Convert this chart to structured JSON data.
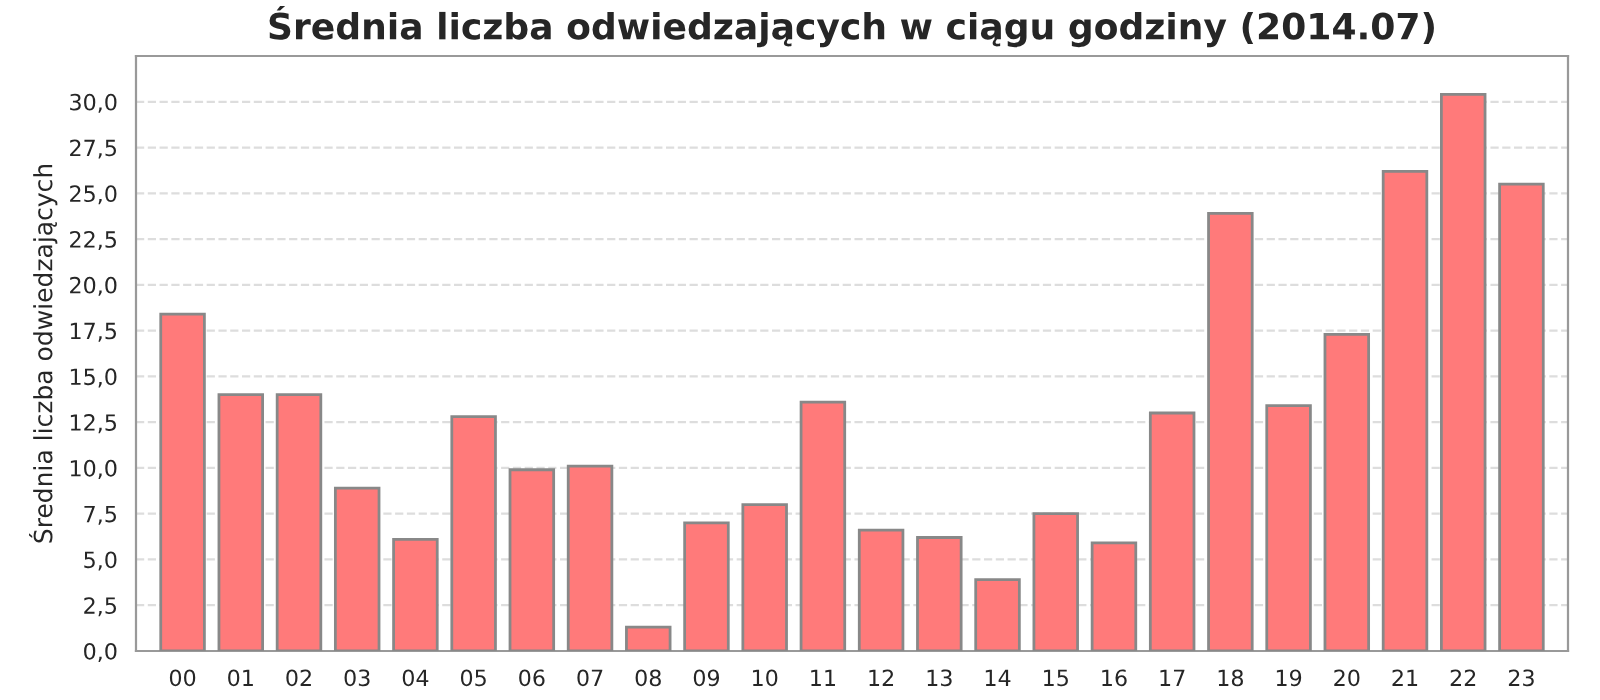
{
  "chart_data": {
    "type": "bar",
    "title": "Średnia liczba odwiedzających w ciągu godziny (2014.07)",
    "ylabel": "Średnia liczba odwiedzających",
    "categories": [
      "00",
      "01",
      "02",
      "03",
      "04",
      "05",
      "06",
      "07",
      "08",
      "09",
      "10",
      "11",
      "12",
      "13",
      "14",
      "15",
      "16",
      "17",
      "18",
      "19",
      "20",
      "21",
      "22",
      "23"
    ],
    "series": [
      {
        "color": "#ff7a7a",
        "values": [
          18.4,
          14.0,
          14.0,
          8.9,
          6.1,
          12.8,
          9.9,
          10.1,
          1.3,
          7.0,
          8.0,
          13.6,
          6.6,
          6.2,
          3.9,
          7.5,
          5.9,
          13.0,
          23.9,
          13.4,
          17.3,
          26.2,
          30.4,
          25.5
        ]
      }
    ],
    "ylim": [
      0,
      32.5
    ],
    "yticks": [
      {
        "value": 0,
        "label": "0,0"
      },
      {
        "value": 2.5,
        "label": "2,5"
      },
      {
        "value": 5,
        "label": "5,0"
      },
      {
        "value": 7.5,
        "label": "7,5"
      },
      {
        "value": 10,
        "label": "10,0"
      },
      {
        "value": 12.5,
        "label": "12,5"
      },
      {
        "value": 15,
        "label": "15,0"
      },
      {
        "value": 17.5,
        "label": "17,5"
      },
      {
        "value": 20,
        "label": "20,0"
      },
      {
        "value": 22.5,
        "label": "22,5"
      },
      {
        "value": 25,
        "label": "25,0"
      },
      {
        "value": 27.5,
        "label": "27,5"
      },
      {
        "value": 30,
        "label": "30,0"
      }
    ],
    "grid": "y"
  }
}
